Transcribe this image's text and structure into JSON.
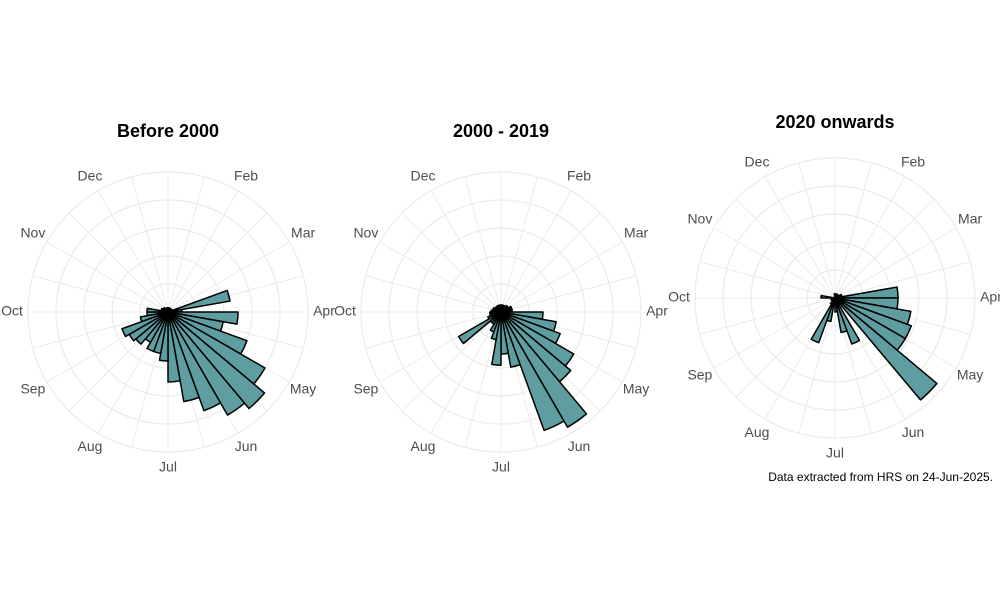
{
  "chart_data": [
    {
      "type": "polar_bar",
      "title": "Before 2000",
      "theta_labels": [
        null,
        "Feb",
        "Mar",
        "Apr",
        "May",
        "Jun",
        "Jul",
        "Aug",
        "Sep",
        "Oct",
        "Nov",
        "Dec"
      ],
      "values": [
        0.3,
        0.3,
        0.3,
        0.3,
        0.3,
        0.3,
        0.3,
        4.5,
        1,
        5,
        4,
        6,
        8,
        9,
        8.5,
        7.5,
        6.5,
        5,
        3.5,
        3,
        3,
        2.5,
        3,
        3.2,
        3.5,
        2,
        1.5,
        1.5,
        0.5,
        0.5,
        0.4,
        0.4,
        0.3,
        0.3,
        0.3,
        0.3
      ],
      "color": "#5f9ea0",
      "rlim": [
        0,
        10
      ],
      "rticks": [
        2,
        4,
        6,
        8,
        10
      ],
      "grid": true
    },
    {
      "type": "polar_bar",
      "title": "2000 - 2019",
      "theta_labels": [
        null,
        "Feb",
        "Mar",
        "Apr",
        "May",
        "Jun",
        "Jul",
        "Aug",
        "Sep",
        "Oct",
        "Nov",
        "Dec"
      ],
      "values": [
        0.5,
        0.5,
        0.5,
        0.5,
        0.6,
        0.6,
        0.8,
        0.8,
        0.8,
        3,
        4,
        4.5,
        6,
        6.5,
        9.5,
        9,
        4,
        3,
        3.8,
        2,
        1.5,
        1,
        1,
        3.5,
        1,
        0.8,
        0.8,
        0.7,
        0.6,
        0.6,
        0.5,
        0.5,
        0.5,
        0.5,
        0.5,
        0.5
      ],
      "color": "#5f9ea0",
      "rlim": [
        0,
        10
      ],
      "rticks": [
        2,
        4,
        6,
        8,
        10
      ],
      "grid": true
    },
    {
      "type": "polar_bar",
      "title": "2020 onwards",
      "theta_labels": [
        null,
        "Feb",
        "Mar",
        "Apr",
        "May",
        "Jun",
        "Jul",
        "Aug",
        "Sep",
        "Oct",
        "Nov",
        "Dec"
      ],
      "values": [
        0.3,
        0.3,
        0.3,
        0.3,
        0.3,
        0.3,
        0.5,
        0.5,
        4.5,
        4.5,
        5.5,
        5.8,
        5.8,
        9.5,
        0,
        3.5,
        2.5,
        1,
        0.3,
        1.7,
        3.4,
        0.5,
        0,
        0,
        0.3,
        0,
        0,
        1,
        0,
        0,
        0,
        0,
        0,
        0,
        0,
        0.3
      ],
      "color": "#5f9ea0",
      "rlim": [
        0,
        10
      ],
      "rticks": [
        2,
        4,
        6,
        8,
        10
      ],
      "grid": true
    }
  ],
  "caption": "Data extracted from HRS on 24-Jun-2025."
}
